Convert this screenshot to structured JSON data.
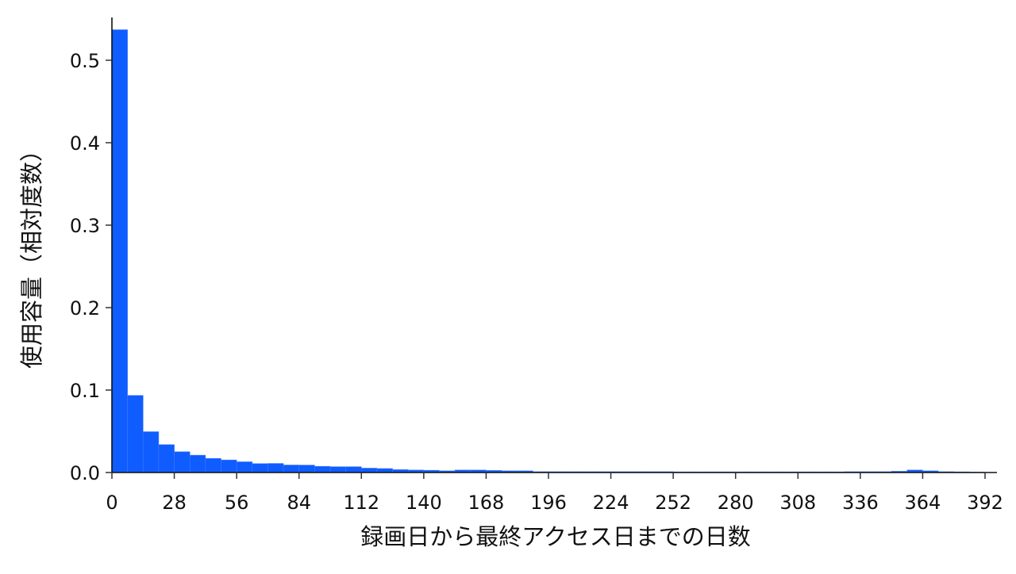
{
  "chart_data": {
    "type": "bar",
    "subtype": "histogram",
    "title": "",
    "xlabel": "録画日から最終アクセス日までの日数",
    "ylabel": "使用容量（相対度数）",
    "bin_width": 7,
    "x_ticks": [
      0,
      28,
      56,
      84,
      112,
      140,
      168,
      196,
      224,
      252,
      280,
      308,
      336,
      364,
      392
    ],
    "y_ticks": [
      "0.0",
      "0.1",
      "0.2",
      "0.3",
      "0.4",
      "0.5"
    ],
    "xlim": [
      0,
      395
    ],
    "ylim": [
      0,
      0.55
    ],
    "grid": false,
    "bar_color": "#0f5cff",
    "values": [
      0.537,
      0.0935,
      0.0495,
      0.0338,
      0.0252,
      0.021,
      0.0171,
      0.0152,
      0.013,
      0.0108,
      0.011,
      0.0091,
      0.009,
      0.0075,
      0.007,
      0.007,
      0.0053,
      0.0048,
      0.0035,
      0.003,
      0.0027,
      0.002,
      0.003,
      0.003,
      0.0025,
      0.002,
      0.002,
      0.001,
      0.001,
      0.001,
      0.001,
      0.001,
      0.001,
      0.001,
      0.001,
      0.001,
      0.0008,
      0.0008,
      0.0008,
      0.0008,
      0.0008,
      0.0008,
      0.0008,
      0.0008,
      0.0008,
      0.0008,
      0.0008,
      0.001,
      0.001,
      0.001,
      0.0015,
      0.003,
      0.002,
      0.001,
      0.0008,
      0.0005
    ]
  }
}
